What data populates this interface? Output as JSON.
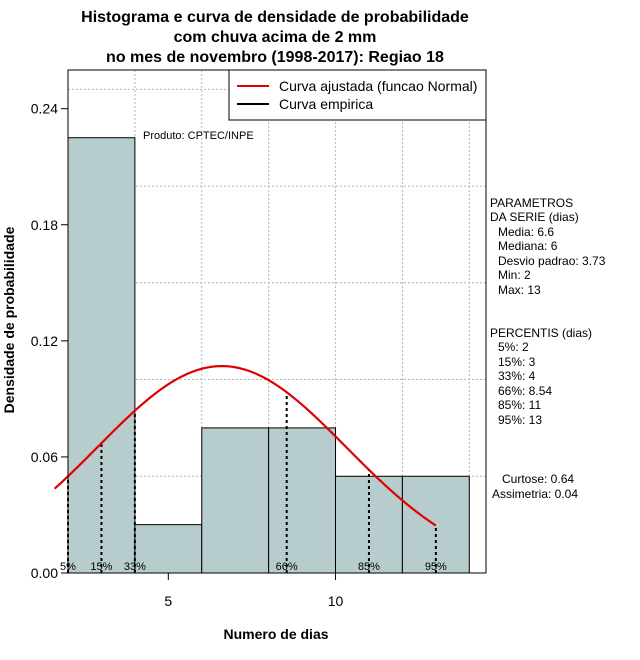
{
  "chart_data": {
    "type": "bar",
    "title_lines": [
      "Histograma e curva de densidade de probabilidade",
      "com chuva acima de 2 mm",
      "no mes de novembro (1998-2017): Regiao 18"
    ],
    "xlabel": "Numero de dias",
    "ylabel": "Densidade de probabilidade",
    "xlim": [
      2,
      14.5
    ],
    "ylim": [
      0,
      0.26
    ],
    "x_ticks": [
      5,
      10
    ],
    "y_ticks": [
      0.0,
      0.06,
      0.12,
      0.18,
      0.24
    ],
    "y_tick_labels": [
      "0.00",
      "0.06",
      "0.12",
      "0.18",
      "0.24"
    ],
    "x_grid": [
      2,
      4,
      6,
      8,
      10,
      12,
      14
    ],
    "y_grid": [
      0.0,
      0.05,
      0.1,
      0.15,
      0.2,
      0.25
    ],
    "grid": true,
    "bar_color": "#b7cccc",
    "bins": [
      {
        "x0": 2,
        "x1": 4,
        "density": 0.225
      },
      {
        "x0": 4,
        "x1": 6,
        "density": 0.025
      },
      {
        "x0": 6,
        "x1": 8,
        "density": 0.075
      },
      {
        "x0": 8,
        "x1": 10,
        "density": 0.075
      },
      {
        "x0": 10,
        "x1": 12,
        "density": 0.05
      },
      {
        "x0": 12,
        "x1": 14,
        "density": 0.05
      }
    ],
    "normal_curve": {
      "mean": 6.6,
      "sd": 3.73,
      "x_from": 1.6,
      "x_to": 13.0,
      "color": "#e00000"
    },
    "percentile_markers": [
      {
        "label": "5%",
        "x": 2
      },
      {
        "label": "15%",
        "x": 3
      },
      {
        "label": "33%",
        "x": 4
      },
      {
        "label": "66%",
        "x": 8.54
      },
      {
        "label": "85%",
        "x": 11
      },
      {
        "label": "95%",
        "x": 13
      }
    ],
    "legend": {
      "placement": "top-right",
      "entries": [
        {
          "label": "Curva ajustada (funcao Normal)",
          "color": "#e00000"
        },
        {
          "label": "Curva empirica",
          "color": "#000000"
        }
      ]
    },
    "product_note": "Produto: CPTEC/INPE",
    "side_panel": {
      "params_title_1": "PARAMETROS",
      "params_title_2": "DA SERIE (dias)",
      "media": "Media: 6.6",
      "mediana": "Mediana: 6",
      "desvio": "Desvio padrao: 3.73",
      "min": "Min: 2",
      "max": "Max: 13",
      "percentis_title": "PERCENTIS (dias)",
      "p5": "5%: 2",
      "p15": "15%: 3",
      "p33": "33%: 4",
      "p66": "66%: 8.54",
      "p85": "85%: 11",
      "p95": "95%: 13",
      "curtose": "Curtose: 0.64",
      "assimetria": "Assimetria: 0.04"
    }
  }
}
